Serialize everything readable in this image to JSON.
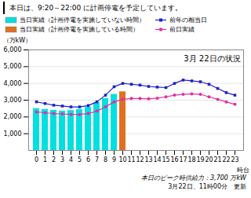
{
  "chart_data": {
    "type": "bar",
    "title": "本日は、9:20～22:00 に計画停電を予定しています。",
    "subtitle": "3月 22日の状況",
    "x_label": "時台",
    "y_label": "（万kW）",
    "annotations": [
      "本日のピーク時供給力：3,700 万kW",
      "3月22日、11時00分　更新"
    ],
    "categories": [
      "0",
      "1",
      "2",
      "3",
      "4",
      "5",
      "6",
      "7",
      "8",
      "9",
      "10",
      "11",
      "12",
      "13",
      "14",
      "15",
      "16",
      "17",
      "18",
      "19",
      "20",
      "21",
      "22",
      "23"
    ],
    "series": [
      {
        "name": "当日実績（計画停電を実施していない時間）",
        "type": "bar",
        "color": "#00e0e0",
        "values": [
          2500,
          2450,
          2400,
          2350,
          2380,
          2450,
          2580,
          2850,
          3100,
          3350,
          null,
          null,
          null,
          null,
          null,
          null,
          null,
          null,
          null,
          null,
          null,
          null,
          null,
          null
        ]
      },
      {
        "name": "当日実績（計画停電を実施している時間）",
        "type": "bar",
        "color": "#e07020",
        "values": [
          null,
          null,
          null,
          null,
          null,
          null,
          null,
          null,
          null,
          null,
          3500,
          null,
          null,
          null,
          null,
          null,
          null,
          null,
          null,
          null,
          null,
          null,
          null,
          null
        ]
      },
      {
        "name": "前年の相当日",
        "type": "line",
        "color": "#2020cc",
        "marker": "square",
        "values": [
          2900,
          2800,
          2700,
          2650,
          2600,
          2600,
          2680,
          2900,
          3300,
          3800,
          4000,
          3950,
          3900,
          3820,
          3780,
          3750,
          4000,
          4200,
          4150,
          4100,
          3950,
          3700,
          3450,
          3300
        ]
      },
      {
        "name": "前日実績",
        "type": "line",
        "color": "#e030a0",
        "marker": "circle",
        "values": [
          2300,
          2250,
          2200,
          2180,
          2150,
          2150,
          2200,
          2350,
          2600,
          2900,
          3050,
          3100,
          3100,
          3080,
          3120,
          3200,
          3300,
          3350,
          3380,
          3350,
          3200,
          3050,
          2900,
          2750
        ]
      }
    ],
    "ylim": [
      0,
      6000
    ],
    "yticks": [
      {
        "value": 1000,
        "label": "1,000"
      },
      {
        "value": 2000,
        "label": "2,000"
      },
      {
        "value": 3000,
        "label": "3,000"
      },
      {
        "value": 4000,
        "label": "4,000"
      },
      {
        "value": 5000,
        "label": "5,000"
      },
      {
        "value": 6000,
        "label": "6,000"
      }
    ],
    "grid": true,
    "legend": "top"
  }
}
